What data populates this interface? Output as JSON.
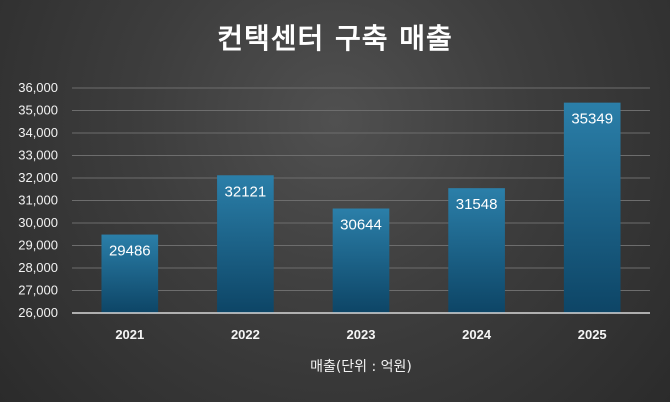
{
  "chart_data": {
    "type": "bar",
    "title": "컨택센터 구축 매출",
    "xlabel": "매출(단위 : 억원)",
    "ylabel": "",
    "categories": [
      "2021",
      "2022",
      "2023",
      "2024",
      "2025"
    ],
    "values": [
      29486,
      32121,
      30644,
      31548,
      35349
    ],
    "ylim": [
      26000,
      36000
    ],
    "y_ticks": [
      "26,000",
      "27,000",
      "28,000",
      "29,000",
      "30,000",
      "31,000",
      "32,000",
      "33,000",
      "34,000",
      "35,000",
      "36,000"
    ],
    "grid": true,
    "legend": "none"
  },
  "colors": {
    "bar_top": "#2b7fa9",
    "bar_bottom": "#0d4566",
    "grid": "#6d6d6d",
    "axis": "#d8d8d8",
    "text": "#ffffff"
  }
}
